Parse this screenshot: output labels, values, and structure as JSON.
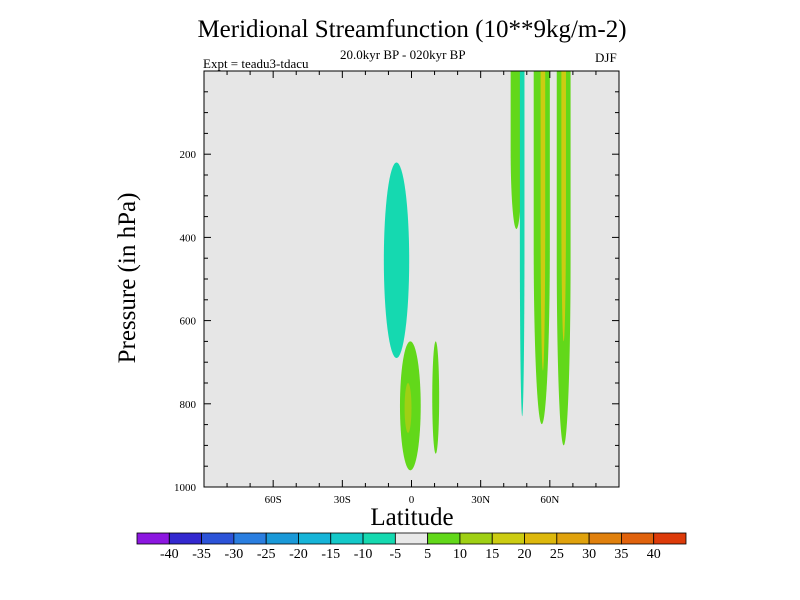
{
  "chart_data": {
    "type": "contour",
    "title": "Meridional Streamfunction (10**9kg/m-2)",
    "subtitle": "20.0kyr BP - 020kyr BP",
    "experiment": "Expt = teadu3-tdacu",
    "season": "DJF",
    "xlabel": "Latitude",
    "ylabel": "Pressure (in hPa)",
    "xlim": [
      -90,
      90
    ],
    "ylim": [
      1000,
      0
    ],
    "x_ticks": [
      {
        "value": -60,
        "label": "60S"
      },
      {
        "value": -30,
        "label": "30S"
      },
      {
        "value": 0,
        "label": "0"
      },
      {
        "value": 30,
        "label": "30N"
      },
      {
        "value": 60,
        "label": "60N"
      }
    ],
    "y_ticks": [
      {
        "value": 200,
        "label": "200"
      },
      {
        "value": 400,
        "label": "400"
      },
      {
        "value": 600,
        "label": "600"
      },
      {
        "value": 800,
        "label": "800"
      },
      {
        "value": 1000,
        "label": "1000"
      }
    ],
    "background_color": "#e6e6e6",
    "colorbar": {
      "levels": [
        "-40",
        "-35",
        "-30",
        "-25",
        "-20",
        "-15",
        "-10",
        "-5",
        "5",
        "10",
        "15",
        "20",
        "25",
        "30",
        "35",
        "40"
      ],
      "colors": [
        "#8c17e0",
        "#3328cf",
        "#2c53d8",
        "#2a7ee0",
        "#1a99d8",
        "#16b4d8",
        "#14c9c9",
        "#15d9b0",
        "#e9e9e9",
        "#62d81a",
        "#9fd014",
        "#cccc12",
        "#ddb80c",
        "#e0a20d",
        "#e0800c",
        "#e0620c",
        "#dd3b0a"
      ]
    },
    "regions": [
      {
        "name": "tropical-negative-cell",
        "interval": "-10 to -5",
        "lat_range": [
          -12,
          -1
        ],
        "p_range": [
          220,
          690
        ]
      },
      {
        "name": "equatorial-positive-cell",
        "interval": "5 to 10",
        "lat_range": [
          -5,
          4
        ],
        "p_range": [
          650,
          960
        ]
      },
      {
        "name": "equatorial-core",
        "interval": "10 to 15",
        "lat_range": [
          -3,
          0
        ],
        "p_range": [
          750,
          870
        ]
      },
      {
        "name": "small-positive-cell",
        "interval": "5 to 10",
        "lat_range": [
          9,
          12
        ],
        "p_range": [
          650,
          920
        ]
      },
      {
        "name": "northern-positive-column-1",
        "interval": "5 to 10",
        "lat_range": [
          43,
          48
        ],
        "p_range": [
          0,
          380
        ]
      },
      {
        "name": "northern-negative-column",
        "interval": "-10 to -5",
        "lat_range": [
          47,
          49
        ],
        "p_range": [
          0,
          830
        ]
      },
      {
        "name": "northern-positive-column-2",
        "interval": "5 to 15",
        "lat_range": [
          53,
          60
        ],
        "p_range": [
          0,
          850
        ]
      },
      {
        "name": "northern-core-column",
        "interval": "15 to 20",
        "lat_range": [
          56,
          58
        ],
        "p_range": [
          0,
          720
        ]
      },
      {
        "name": "northern-positive-column-3",
        "interval": "5 to 15",
        "lat_range": [
          63,
          69
        ],
        "p_range": [
          0,
          900
        ]
      },
      {
        "name": "northern-core-column-2",
        "interval": "15 to 20",
        "lat_range": [
          65,
          67
        ],
        "p_range": [
          0,
          650
        ]
      }
    ]
  }
}
